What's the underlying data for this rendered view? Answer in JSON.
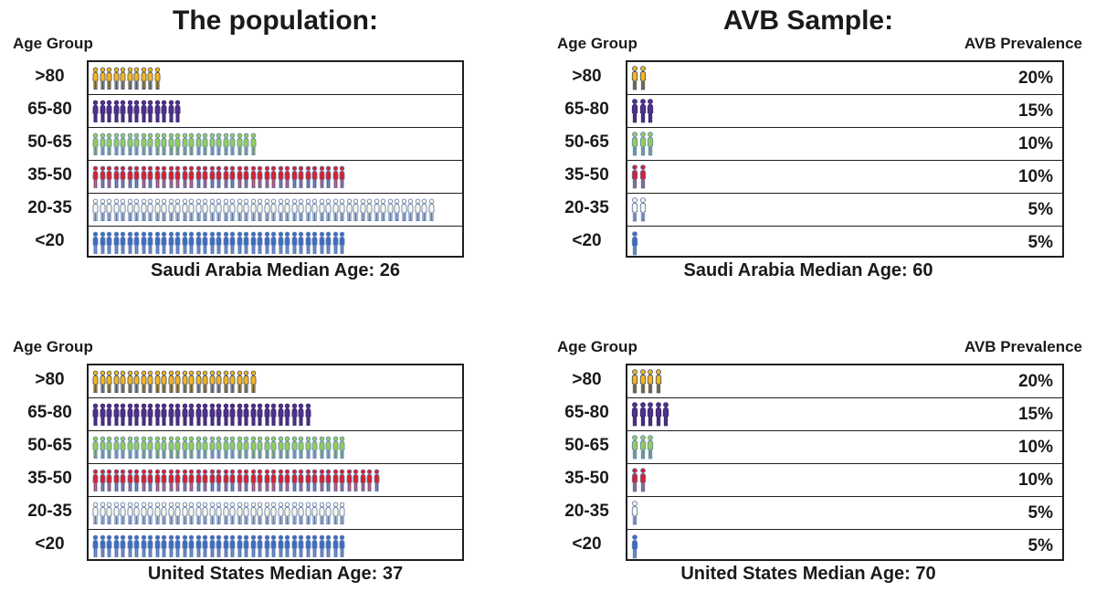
{
  "headers": {
    "age_group_label": "Age Group",
    "prevalence_label": "AVB Prevalence"
  },
  "icon_legend": {
    ">80": {
      "name": "person-icon-yellow",
      "fill": "#F3B51F",
      "stroke": "#3C4A66"
    },
    "65-80": {
      "name": "person-icon-purple",
      "fill": "#4F3189",
      "stroke": "#3A2570"
    },
    "50-65": {
      "name": "person-icon-green",
      "fill": "#92CD5C",
      "stroke": "#5F7DB4"
    },
    "35-50": {
      "name": "person-icon-red",
      "fill": "#D6212B",
      "stroke": "#5F7DB4"
    },
    "20-35": {
      "name": "person-icon-outline",
      "fill": "#FAF6E9",
      "stroke": "#4C6CA2"
    },
    "<20": {
      "name": "person-icon-blue",
      "fill": "#3E6CB8",
      "stroke": "#6E87BC"
    }
  },
  "chart_data": [
    {
      "type": "bar",
      "style": "pictogram",
      "panel": "population-saudi-arabia",
      "title": "The population:",
      "categories": [
        ">80",
        "65-80",
        "50-65",
        "35-50",
        "20-35",
        "<20"
      ],
      "values": [
        10,
        13,
        24,
        37,
        50,
        37
      ],
      "caption": "Saudi Arabia Median Age: 26"
    },
    {
      "type": "bar",
      "style": "pictogram",
      "panel": "avb-sample-saudi-arabia",
      "title": "AVB Sample:",
      "categories": [
        ">80",
        "65-80",
        "50-65",
        "35-50",
        "20-35",
        "<20"
      ],
      "values": [
        2,
        3,
        3,
        2,
        2,
        1
      ],
      "prevalence": [
        "20%",
        "15%",
        "10%",
        "10%",
        "5%",
        "5%"
      ],
      "caption": "Saudi Arabia Median Age: 60"
    },
    {
      "type": "bar",
      "style": "pictogram",
      "panel": "population-united-states",
      "title": null,
      "categories": [
        ">80",
        "65-80",
        "50-65",
        "35-50",
        "20-35",
        "<20"
      ],
      "values": [
        24,
        32,
        37,
        42,
        37,
        37
      ],
      "caption": "United States Median Age: 37"
    },
    {
      "type": "bar",
      "style": "pictogram",
      "panel": "avb-sample-united-states",
      "title": null,
      "categories": [
        ">80",
        "65-80",
        "50-65",
        "35-50",
        "20-35",
        "<20"
      ],
      "values": [
        4,
        5,
        3,
        2,
        1,
        1
      ],
      "prevalence": [
        "20%",
        "15%",
        "10%",
        "10%",
        "5%",
        "5%"
      ],
      "caption": "United States Median Age: 70"
    }
  ]
}
